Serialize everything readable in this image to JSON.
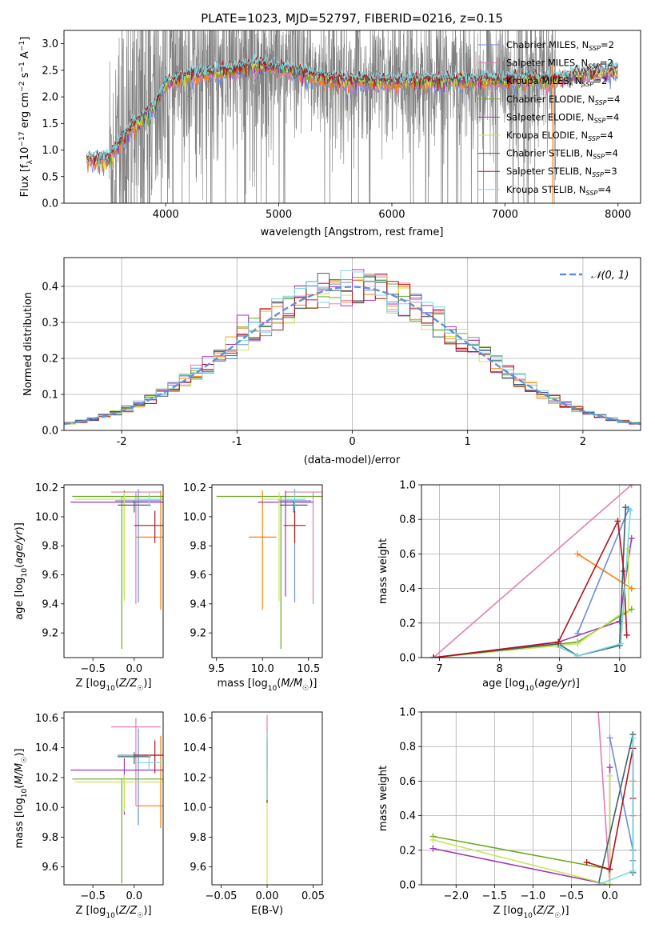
{
  "colors": {
    "Chabrier MILES": "#6a8ed8",
    "Salpeter MILES": "#e07fb5",
    "Kroupa MILES": "#ff7f0e",
    "Chabrier ELODIE": "#6aaa23",
    "Salpeter ELODIE": "#9e39b3",
    "Kroupa ELODIE": "#c8e65c",
    "Chabrier STELIB": "#3a6468",
    "Salpeter STELIB": "#b0141c",
    "Kroupa STELIB": "#7ed6dc",
    "data": "#808080",
    "normal": "#5f8fdc"
  },
  "chart_data": [
    {
      "type": "line",
      "title": "PLATE=1023, MJD=52797, FIBERID=0216, z=0.15",
      "xlabel": "wavelength [Angstrom, rest frame]",
      "ylabel": "Flux [f_λ 10^-17 erg cm^-2 s^-1 A^-1]",
      "xlim": [
        3100,
        8200
      ],
      "ylim": [
        0,
        3.25
      ],
      "xticks": [
        4000,
        5000,
        6000,
        7000,
        8000
      ],
      "yticks": [
        0.0,
        0.5,
        1.0,
        1.5,
        2.0,
        2.5,
        3.0
      ],
      "legend_position": "top-right",
      "data_range": [
        3500,
        7450
      ],
      "model_range": [
        3300,
        8000
      ],
      "continuum": {
        "x": [
          3300,
          3500,
          3600,
          3700,
          3800,
          3900,
          4000,
          4200,
          4400,
          4600,
          4800,
          5000,
          5200,
          5400,
          5600,
          5800,
          6000,
          6200,
          6400,
          6600,
          6800,
          7000,
          7200,
          7400,
          7600,
          7800,
          8000
        ],
        "y": [
          0.82,
          0.85,
          1.15,
          1.45,
          1.6,
          1.8,
          2.25,
          2.4,
          2.45,
          2.5,
          2.6,
          2.55,
          2.45,
          2.35,
          2.3,
          2.3,
          2.28,
          2.3,
          2.3,
          2.3,
          2.32,
          2.3,
          2.35,
          2.3,
          2.4,
          2.45,
          2.5
        ]
      },
      "series": [
        {
          "name": "Chabrier MILES",
          "nssp": "2"
        },
        {
          "name": "Salpeter MILES",
          "nssp": "2"
        },
        {
          "name": "Kroupa MILES",
          "nssp": "2"
        },
        {
          "name": "Chabrier ELODIE",
          "nssp": "4"
        },
        {
          "name": "Salpeter ELODIE",
          "nssp": "4"
        },
        {
          "name": "Kroupa ELODIE",
          "nssp": "4"
        },
        {
          "name": "Chabrier STELIB",
          "nssp": "4"
        },
        {
          "name": "Salpeter STELIB",
          "nssp": "3"
        },
        {
          "name": "Kroupa STELIB",
          "nssp": "4"
        }
      ]
    },
    {
      "type": "step",
      "xlabel": "(data-model)/error",
      "ylabel": "Normed distribution",
      "xlim": [
        -2.5,
        2.5
      ],
      "ylim": [
        0,
        0.48
      ],
      "xticks": [
        -2,
        -1,
        0,
        1,
        2
      ],
      "yticks": [
        0.0,
        0.1,
        0.2,
        0.3,
        0.4
      ],
      "grid": true,
      "legend_position": "top-right",
      "gaussian_label": "𝒩(0, 1)",
      "bin_width": 0.1
    },
    {
      "type": "errorbar",
      "xlabel": "Z [log10(Z/Z☉)]",
      "ylabel": "age  [log10(age/yr)]",
      "xlim": [
        -0.85,
        0.35
      ],
      "ylim": [
        9.03,
        10.22
      ],
      "xticks": [
        -0.5,
        0.0
      ],
      "xtick_labels": [
        "−0.5",
        "0.0"
      ],
      "yticks": [
        9.2,
        9.4,
        9.6,
        9.8,
        10.0,
        10.2
      ],
      "points": [
        {
          "series": "Chabrier MILES",
          "x": 0.05,
          "y": 10.11,
          "xerr": 0.28,
          "yerr": [
            0.7,
            0.08
          ]
        },
        {
          "series": "Salpeter MILES",
          "x": 0.02,
          "y": 10.17,
          "xerr": 0.3,
          "yerr": [
            0.77,
            0.0
          ]
        },
        {
          "series": "Kroupa MILES",
          "x": 0.32,
          "y": 9.86,
          "xerr": 0.3,
          "yerr": [
            0.5,
            0.32
          ]
        },
        {
          "series": "Chabrier ELODIE",
          "x": -0.15,
          "y": 10.14,
          "xerr": 0.6,
          "yerr": [
            1.05,
            0.0
          ]
        },
        {
          "series": "Salpeter ELODIE",
          "x": -0.12,
          "y": 10.1,
          "xerr": 0.65,
          "yerr": [
            0.65,
            0.08
          ]
        },
        {
          "series": "Kroupa ELODIE",
          "x": -0.12,
          "y": 10.12,
          "xerr": 0.6,
          "yerr": [
            0.7,
            0.05
          ]
        },
        {
          "series": "Chabrier STELIB",
          "x": 0.0,
          "y": 10.08,
          "xerr": 0.2,
          "yerr": [
            0.05,
            0.03
          ]
        },
        {
          "series": "Salpeter STELIB",
          "x": 0.25,
          "y": 9.94,
          "xerr": 0.25,
          "yerr": [
            0.12,
            0.1
          ]
        },
        {
          "series": "Kroupa STELIB",
          "x": 0.18,
          "y": 10.12,
          "xerr": 0.15,
          "yerr": [
            0.05,
            0.05
          ]
        }
      ]
    },
    {
      "type": "errorbar",
      "xlabel": "mass [log10(M/M☉)]",
      "ylabel": "",
      "xlim": [
        9.45,
        10.65
      ],
      "ylim": [
        9.03,
        10.22
      ],
      "xticks": [
        9.5,
        10.0,
        10.5
      ],
      "yticks": [
        9.2,
        9.4,
        9.6,
        9.8,
        10.0,
        10.2
      ],
      "points": [
        {
          "series": "Chabrier MILES",
          "x": 10.35,
          "y": 10.11,
          "xerr": 0.18,
          "yerr": [
            0.7,
            0.08
          ]
        },
        {
          "series": "Salpeter MILES",
          "x": 10.55,
          "y": 10.17,
          "xerr": 0.3,
          "yerr": [
            0.77,
            0.0
          ]
        },
        {
          "series": "Kroupa MILES",
          "x": 10.0,
          "y": 9.86,
          "xerr": 0.15,
          "yerr": [
            0.5,
            0.32
          ]
        },
        {
          "series": "Chabrier ELODIE",
          "x": 10.2,
          "y": 10.14,
          "xerr": 0.7,
          "yerr": [
            1.05,
            0.0
          ]
        },
        {
          "series": "Salpeter ELODIE",
          "x": 10.25,
          "y": 10.1,
          "xerr": 0.3,
          "yerr": [
            0.65,
            0.08
          ]
        },
        {
          "series": "Kroupa ELODIE",
          "x": 10.18,
          "y": 10.12,
          "xerr": 0.2,
          "yerr": [
            0.7,
            0.05
          ]
        },
        {
          "series": "Chabrier STELIB",
          "x": 10.34,
          "y": 10.08,
          "xerr": 0.15,
          "yerr": [
            0.05,
            0.03
          ]
        },
        {
          "series": "Salpeter STELIB",
          "x": 10.35,
          "y": 9.94,
          "xerr": 0.12,
          "yerr": [
            0.12,
            0.1
          ]
        },
        {
          "series": "Kroupa STELIB",
          "x": 10.35,
          "y": 10.12,
          "xerr": 0.12,
          "yerr": [
            0.05,
            0.05
          ]
        }
      ]
    },
    {
      "type": "line",
      "xlabel": "age  [log10(age/yr)]",
      "ylabel": "mass weight",
      "xlim": [
        6.7,
        10.35
      ],
      "ylim": [
        0,
        1.0
      ],
      "xticks": [
        7,
        8,
        9,
        10
      ],
      "yticks": [
        0.0,
        0.2,
        0.4,
        0.6,
        0.8,
        1.0
      ],
      "grid": true,
      "series": [
        {
          "name": "Salpeter MILES",
          "x": [
            6.9,
            10.2
          ],
          "y": [
            0.0,
            1.0
          ]
        },
        {
          "name": "Kroupa MILES",
          "x": [
            9.3,
            10.2
          ],
          "y": [
            0.6,
            0.4
          ]
        },
        {
          "name": "Chabrier MILES",
          "x": [
            9.3,
            10.15
          ],
          "y": [
            0.14,
            0.86
          ]
        },
        {
          "name": "Chabrier ELODIE",
          "x": [
            6.9,
            9.3,
            10.05,
            10.2
          ],
          "y": [
            0.0,
            0.09,
            0.25,
            0.28
          ]
        },
        {
          "name": "Salpeter ELODIE",
          "x": [
            6.9,
            8.98,
            10.0,
            10.2
          ],
          "y": [
            0.0,
            0.09,
            0.21,
            0.69
          ]
        },
        {
          "name": "Kroupa ELODIE",
          "x": [
            6.9,
            9.3,
            10.05,
            10.15,
            10.15
          ],
          "y": [
            0.0,
            0.08,
            0.26,
            0.27,
            0.63
          ]
        },
        {
          "name": "Chabrier STELIB",
          "x": [
            6.9,
            8.98,
            9.3,
            10.0,
            10.1
          ],
          "y": [
            0.0,
            0.08,
            0.01,
            0.07,
            0.87
          ]
        },
        {
          "name": "Salpeter STELIB",
          "x": [
            6.9,
            8.98,
            9.97,
            10.07,
            10.12
          ],
          "y": [
            0.0,
            0.09,
            0.79,
            0.5,
            0.13
          ]
        },
        {
          "name": "Kroupa STELIB",
          "x": [
            9.0,
            9.3,
            10.02,
            10.18
          ],
          "y": [
            0.06,
            0.01,
            0.08,
            0.85
          ]
        }
      ]
    },
    {
      "type": "errorbar",
      "xlabel": "Z [log10(Z/Z☉)]",
      "ylabel": "mass [log10(M/M☉)]",
      "xlim": [
        -0.85,
        0.35
      ],
      "ylim": [
        9.48,
        10.64
      ],
      "xticks": [
        -0.5,
        0.0
      ],
      "xtick_labels": [
        "−0.5",
        "0.0"
      ],
      "yticks": [
        9.6,
        9.8,
        10.0,
        10.2,
        10.4,
        10.6
      ],
      "points": [
        {
          "series": "Chabrier MILES",
          "x": 0.05,
          "y": 10.35,
          "xerr": 0.25,
          "yerr": [
            0.47,
            0.18
          ]
        },
        {
          "series": "Salpeter MILES",
          "x": 0.02,
          "y": 10.54,
          "xerr": 0.3,
          "yerr": [
            0.53,
            0.06
          ]
        },
        {
          "series": "Kroupa MILES",
          "x": 0.32,
          "y": 10.01,
          "xerr": 0.3,
          "yerr": [
            0.15,
            0.47
          ]
        },
        {
          "series": "Chabrier ELODIE",
          "x": -0.15,
          "y": 10.19,
          "xerr": 0.6,
          "yerr": [
            0.7,
            0.0
          ]
        },
        {
          "series": "Salpeter ELODIE",
          "x": -0.12,
          "y": 10.25,
          "xerr": 0.65,
          "yerr": [
            0.3,
            0.08
          ]
        },
        {
          "series": "Kroupa ELODIE",
          "x": -0.12,
          "y": 10.17,
          "xerr": 0.6,
          "yerr": [
            0.2,
            0.05
          ]
        },
        {
          "series": "Chabrier STELIB",
          "x": 0.0,
          "y": 10.34,
          "xerr": 0.2,
          "yerr": [
            0.05,
            0.03
          ]
        },
        {
          "series": "Salpeter STELIB",
          "x": 0.25,
          "y": 10.35,
          "xerr": 0.25,
          "yerr": [
            0.12,
            0.1
          ]
        },
        {
          "series": "Kroupa STELIB",
          "x": 0.18,
          "y": 10.3,
          "xerr": 0.15,
          "yerr": [
            0.05,
            0.05
          ]
        }
      ]
    },
    {
      "type": "errorbar",
      "xlabel": "E(B-V)",
      "ylabel": "",
      "xlim": [
        -0.06,
        0.06
      ],
      "ylim": [
        9.48,
        10.64
      ],
      "xticks": [
        -0.05,
        0.0,
        0.05
      ],
      "xtick_labels": [
        "−0.05",
        "0.00",
        "0.05"
      ],
      "yticks": [
        9.6,
        9.8,
        10.0,
        10.2,
        10.4,
        10.6
      ],
      "points": [
        {
          "series": "Salpeter MILES",
          "x": 0.0,
          "y": 10.45,
          "xerr": 0,
          "yerr": [
            0.2,
            0.17
          ]
        },
        {
          "series": "Kroupa ELODIE",
          "x": 0.0,
          "y": 10.1,
          "xerr": 0,
          "yerr": [
            0.62,
            0.3
          ]
        },
        {
          "series": "Salpeter STELIB",
          "x": 0.0,
          "y": 10.25,
          "xerr": 0,
          "yerr": [
            0.22,
            0.22
          ]
        },
        {
          "series": "Kroupa STELIB",
          "x": 0.0,
          "y": 10.3,
          "xerr": 0,
          "yerr": [
            0.25,
            0.2
          ]
        }
      ]
    },
    {
      "type": "line",
      "xlabel": "Z [log10(Z/Z☉)]",
      "ylabel": "mass weight",
      "xlim": [
        -2.45,
        0.4
      ],
      "ylim": [
        0,
        1.0
      ],
      "xticks": [
        -2.0,
        -1.5,
        -1.0,
        -0.5,
        0.0
      ],
      "xtick_labels": [
        "−2.0",
        "−1.5",
        "−1.0",
        "−0.5",
        "0.0"
      ],
      "yticks": [
        0.0,
        0.2,
        0.4,
        0.6,
        0.8,
        1.0
      ],
      "grid": true,
      "series": [
        {
          "name": "Salpeter MILES",
          "x": [
            -0.15,
            0.0
          ],
          "y": [
            1.0,
            0.0
          ]
        },
        {
          "name": "Chabrier MILES",
          "x": [
            0.0,
            0.3,
            0.3
          ],
          "y": [
            0.85,
            0.2,
            0.14
          ]
        },
        {
          "name": "Kroupa MILES",
          "x": [
            0.3,
            0.3
          ],
          "y": [
            0.6,
            0.4
          ]
        },
        {
          "name": "Chabrier ELODIE",
          "x": [
            -2.3,
            0.0
          ],
          "y": [
            0.28,
            0.09
          ]
        },
        {
          "name": "Salpeter ELODIE",
          "x": [
            -2.3,
            0.0,
            0.0
          ],
          "y": [
            0.21,
            0.0,
            0.68
          ]
        },
        {
          "name": "Kroupa ELODIE",
          "x": [
            -2.3,
            0.0,
            0.0
          ],
          "y": [
            0.26,
            0.0,
            0.63
          ]
        },
        {
          "name": "Chabrier STELIB",
          "x": [
            -0.15,
            0.3,
            0.3
          ],
          "y": [
            0.0,
            0.87,
            0.07
          ]
        },
        {
          "name": "Salpeter STELIB",
          "x": [
            -0.3,
            0.0,
            0.3,
            0.3
          ],
          "y": [
            0.13,
            0.09,
            0.79,
            0.5
          ]
        },
        {
          "name": "Kroupa STELIB",
          "x": [
            0.3,
            0.3,
            -0.15
          ],
          "y": [
            0.85,
            0.08,
            0.0
          ]
        }
      ]
    }
  ]
}
